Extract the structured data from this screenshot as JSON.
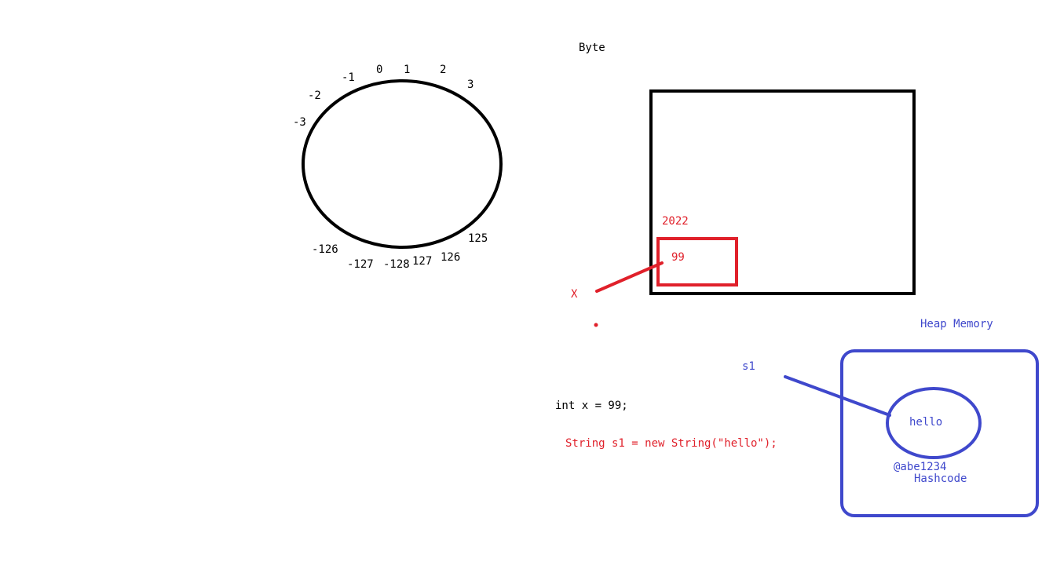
{
  "colors": {
    "black": "#000000",
    "red": "#e0202a",
    "blue": "#3f48cc"
  },
  "byte_title": "Byte",
  "circle_labels": {
    "neg1": "-1",
    "zero": "0",
    "one": "1",
    "two": "2",
    "three": "3",
    "neg2": "-2",
    "neg3": "-3",
    "p125": "125",
    "p126": "126",
    "p127": "127",
    "neg128": "-128",
    "neg127": "-127",
    "neg126": "-126"
  },
  "stack": {
    "address": "2022",
    "value": "99",
    "var_name": "X"
  },
  "heap": {
    "title": "Heap Memory",
    "var_name": "s1",
    "object_value": "hello",
    "hash_value": "@abe1234",
    "hash_label": "Hashcode"
  },
  "code": {
    "int_decl": "int x = 99;",
    "string_decl": "String s1 = new String(\"hello\");"
  }
}
